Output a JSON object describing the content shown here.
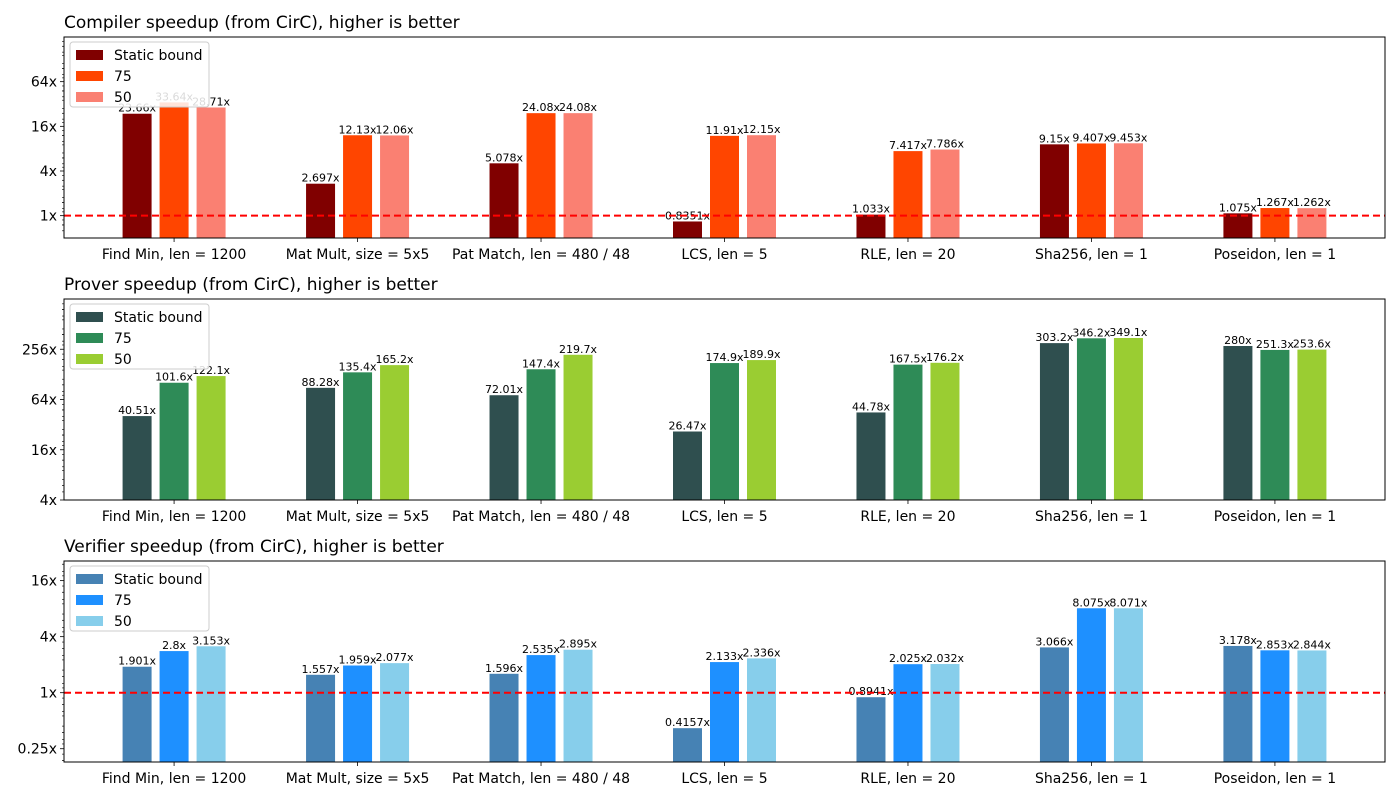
{
  "chart_data": [
    {
      "type": "bar",
      "title": "Compiler speedup (from CirC), higher is better",
      "yscale": "log2",
      "ylim": [
        0.5,
        256
      ],
      "yticks": [
        1,
        4,
        16,
        64
      ],
      "ytick_labels": [
        "1x",
        "4x",
        "16x",
        "64x"
      ],
      "reference_line": 1,
      "legend_position": "top-left",
      "categories": [
        "Find Min, len = 1200",
        "Mat Mult, size = 5x5",
        "Pat Match, len = 480 / 48",
        "LCS, len = 5",
        "RLE, len = 20",
        "Sha256, len = 1",
        "Poseidon, len = 1"
      ],
      "series": [
        {
          "name": "Static bound",
          "color": "#800000",
          "values": [
            23.66,
            2.697,
            5.078,
            0.8351,
            1.033,
            9.15,
            1.075
          ],
          "labels": [
            "23.66x",
            "2.697x",
            "5.078x",
            "0.8351x",
            "1.033x",
            "9.15x",
            "1.075x"
          ]
        },
        {
          "name": "75",
          "color": "#ff4500",
          "values": [
            33.64,
            12.13,
            24.08,
            11.91,
            7.417,
            9.407,
            1.267
          ],
          "labels": [
            "33.64x",
            "12.13x",
            "24.08x",
            "11.91x",
            "7.417x",
            "9.407x",
            "1.267x"
          ]
        },
        {
          "name": "50",
          "color": "#fa8072",
          "values": [
            28.71,
            12.06,
            24.08,
            12.15,
            7.786,
            9.453,
            1.262
          ],
          "labels": [
            "28.71x",
            "12.06x",
            "24.08x",
            "12.15x",
            "7.786x",
            "9.453x",
            "1.262x"
          ]
        }
      ]
    },
    {
      "type": "bar",
      "title": "Prover speedup (from CirC), higher is better",
      "yscale": "log2",
      "ylim": [
        4,
        1024
      ],
      "yticks": [
        4,
        16,
        64,
        256
      ],
      "ytick_labels": [
        "4x",
        "16x",
        "64x",
        "256x"
      ],
      "reference_line": null,
      "legend_position": "top-left",
      "categories": [
        "Find Min, len = 1200",
        "Mat Mult, size = 5x5",
        "Pat Match, len = 480 / 48",
        "LCS, len = 5",
        "RLE, len = 20",
        "Sha256, len = 1",
        "Poseidon, len = 1"
      ],
      "series": [
        {
          "name": "Static bound",
          "color": "#2f4f4f",
          "values": [
            40.51,
            88.28,
            72.01,
            26.47,
            44.78,
            303.2,
            280
          ],
          "labels": [
            "40.51x",
            "88.28x",
            "72.01x",
            "26.47x",
            "44.78x",
            "303.2x",
            "280x"
          ]
        },
        {
          "name": "75",
          "color": "#2e8b57",
          "values": [
            101.6,
            135.4,
            147.4,
            174.9,
            167.5,
            346.2,
            251.3
          ],
          "labels": [
            "101.6x",
            "135.4x",
            "147.4x",
            "174.9x",
            "167.5x",
            "346.2x",
            "251.3x"
          ]
        },
        {
          "name": "50",
          "color": "#9acd32",
          "values": [
            122.1,
            165.2,
            219.7,
            189.9,
            176.2,
            349.1,
            253.6
          ],
          "labels": [
            "122.1x",
            "165.2x",
            "219.7x",
            "189.9x",
            "176.2x",
            "349.1x",
            "253.6x"
          ]
        }
      ]
    },
    {
      "type": "bar",
      "title": "Verifier speedup (from CirC), higher is better",
      "yscale": "log2",
      "ylim": [
        0.18,
        26
      ],
      "yticks": [
        0.25,
        1,
        4,
        16
      ],
      "ytick_labels": [
        "0.25x",
        "1x",
        "4x",
        "16x"
      ],
      "reference_line": 1,
      "legend_position": "top-left",
      "categories": [
        "Find Min, len = 1200",
        "Mat Mult, size = 5x5",
        "Pat Match, len = 480 / 48",
        "LCS, len = 5",
        "RLE, len = 20",
        "Sha256, len = 1",
        "Poseidon, len = 1"
      ],
      "series": [
        {
          "name": "Static bound",
          "color": "#4682b4",
          "values": [
            1.901,
            1.557,
            1.596,
            0.4157,
            0.8941,
            3.066,
            3.178
          ],
          "labels": [
            "1.901x",
            "1.557x",
            "1.596x",
            "0.4157x",
            "0.8941x",
            "3.066x",
            "3.178x"
          ]
        },
        {
          "name": "75",
          "color": "#1e90ff",
          "values": [
            2.8,
            1.959,
            2.535,
            2.133,
            2.025,
            8.075,
            2.853
          ],
          "labels": [
            "2.8x",
            "1.959x",
            "2.535x",
            "2.133x",
            "2.025x",
            "8.075x",
            "2.853x"
          ]
        },
        {
          "name": "50",
          "color": "#87ceeb",
          "values": [
            3.153,
            2.077,
            2.895,
            2.336,
            2.032,
            8.071,
            2.844
          ],
          "labels": [
            "3.153x",
            "2.077x",
            "2.895x",
            "2.336x",
            "2.032x",
            "8.071x",
            "2.844x"
          ]
        }
      ]
    }
  ]
}
